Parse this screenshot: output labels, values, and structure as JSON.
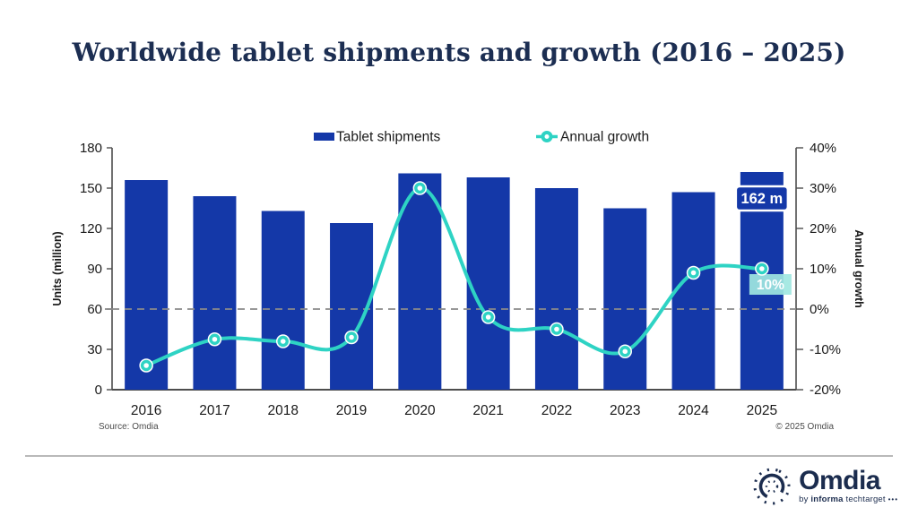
{
  "title": "Worldwide tablet shipments and growth (2016 – 2025)",
  "chart_data": {
    "type": "combo-bar-line",
    "categories": [
      "2016",
      "2017",
      "2018",
      "2019",
      "2020",
      "2021",
      "2022",
      "2023",
      "2024",
      "2025"
    ],
    "series": [
      {
        "name": "Tablet shipments",
        "type": "bar",
        "axis": "left",
        "color": "#1438a8",
        "values": [
          156,
          144,
          133,
          124,
          161,
          158,
          150,
          135,
          147,
          162
        ]
      },
      {
        "name": "Annual growth",
        "type": "line",
        "axis": "right",
        "color": "#2ed3c4",
        "values": [
          -14,
          -7.5,
          -8,
          -7,
          30,
          -2,
          -5,
          -10.5,
          9,
          10
        ]
      }
    ],
    "left_axis": {
      "label": "Units (million)",
      "min": 0,
      "max": 180,
      "step": 30,
      "tick_labels": [
        "0",
        "30",
        "60",
        "90",
        "120",
        "150",
        "180"
      ]
    },
    "right_axis": {
      "label": "Annual growth",
      "min": -20,
      "max": 40,
      "step": 10,
      "tick_labels": [
        "-20%",
        "-10%",
        "0%",
        "10%",
        "20%",
        "30%",
        "40%"
      ]
    },
    "reference_line": {
      "axis": "right",
      "value": 0,
      "style": "dashed",
      "color": "#8a8a8a"
    },
    "annotations": [
      {
        "type": "bar-label",
        "category": "2025",
        "text": "162 m",
        "bg": "#1438a8",
        "color": "#ffffff"
      },
      {
        "type": "point-label",
        "category": "2025",
        "text": "10%",
        "bg": "#9fe7e1",
        "color": "#ffffff"
      }
    ],
    "legend": {
      "position": "top",
      "items": [
        "Tablet shipments",
        "Annual growth"
      ]
    },
    "grid": "off"
  },
  "footer": {
    "source": "Source: Omdia",
    "copyright": "© 2025 Omdia"
  },
  "logo": {
    "name": "Omdia",
    "byline_by": "by",
    "byline_informa": "informa",
    "byline_rest": "techtarget",
    "byline_dots": "•••"
  },
  "colors": {
    "bar_blue": "#1438a8",
    "line_teal": "#2ed3c4",
    "title_navy": "#1c2e52",
    "axis_gray": "#4d4d4d",
    "text_dark": "#1a1a1a"
  }
}
